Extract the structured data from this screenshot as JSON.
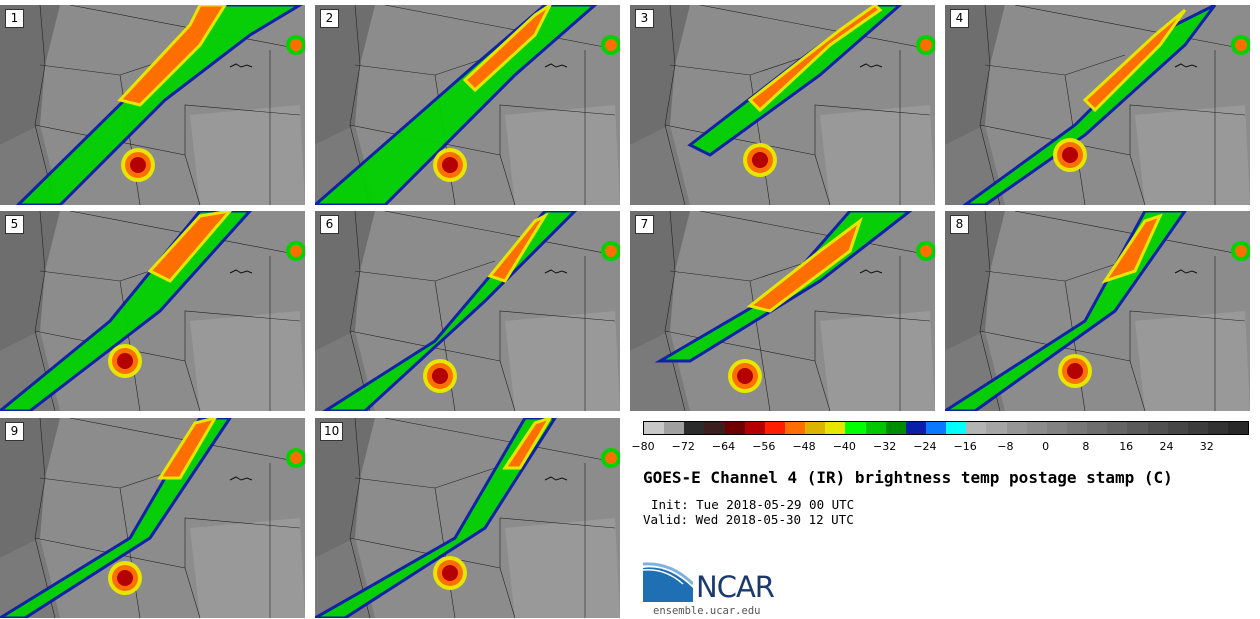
{
  "panels": [
    {
      "label": "1"
    },
    {
      "label": "2"
    },
    {
      "label": "3"
    },
    {
      "label": "4"
    },
    {
      "label": "5"
    },
    {
      "label": "6"
    },
    {
      "label": "7"
    },
    {
      "label": "8"
    },
    {
      "label": "9"
    },
    {
      "label": "10"
    }
  ],
  "colorbar": {
    "colors": [
      "#c8c8c8",
      "#a0a0a0",
      "#2b2b2b",
      "#3c1e1e",
      "#6e0000",
      "#b40000",
      "#ff1e00",
      "#ff6e00",
      "#dcb400",
      "#e6e600",
      "#00ff00",
      "#00c800",
      "#008c00",
      "#0a1eaa",
      "#0a78ff",
      "#00ffff",
      "#b4b4b4",
      "#a5a5a5",
      "#969696",
      "#8c8c8c",
      "#828282",
      "#787878",
      "#6e6e6e",
      "#646464",
      "#5a5a5a",
      "#505050",
      "#464646",
      "#3c3c3c",
      "#323232",
      "#282828"
    ],
    "ticks": [
      "−80",
      "−72",
      "−64",
      "−56",
      "−48",
      "−40",
      "−32",
      "−24",
      "−16",
      "−8",
      "0",
      "8",
      "16",
      "24",
      "32"
    ]
  },
  "title": "GOES-E Channel 4 (IR) brightness temp postage stamp (C)",
  "init": "Init: Tue 2018-05-29 00 UTC",
  "valid": "Valid: Wed 2018-05-30 12 UTC",
  "logo": {
    "text": "NCAR",
    "url": "ensemble.ucar.edu"
  }
}
